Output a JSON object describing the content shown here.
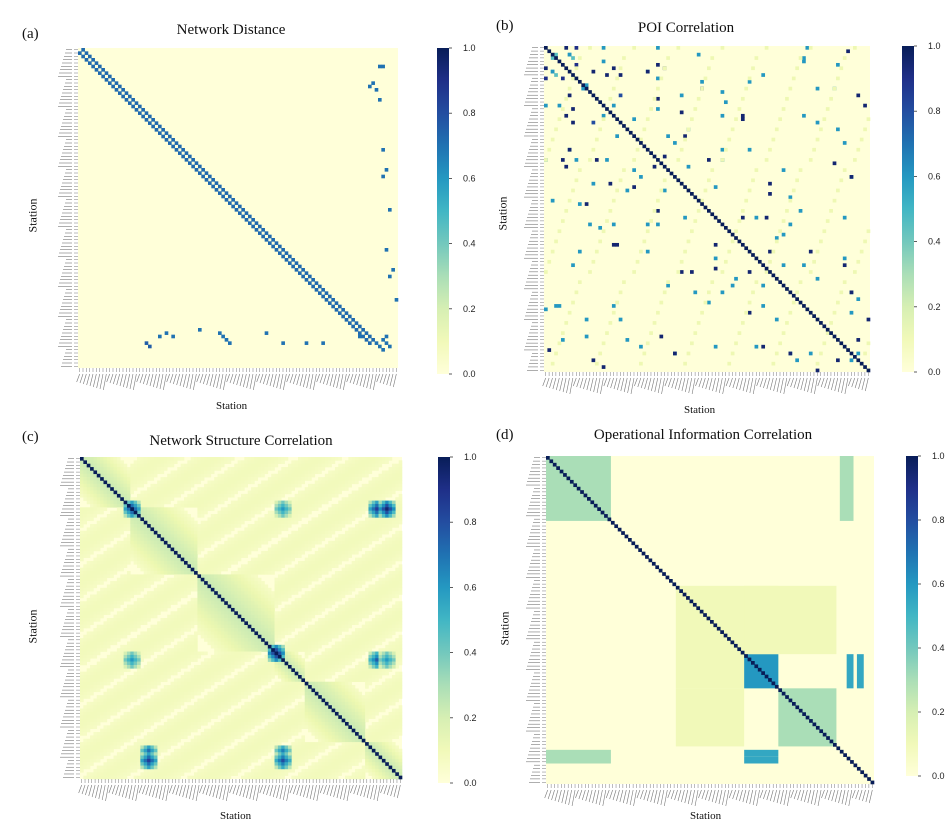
{
  "colors": {
    "cmap": [
      "#ffffd9",
      "#edf8b1",
      "#c7e9b4",
      "#7fcdbb",
      "#41b6c4",
      "#1d91c0",
      "#225ea8",
      "#253494",
      "#081d58"
    ],
    "background": "#ffffd9"
  },
  "panels": [
    {
      "letter": "(a)",
      "title": "Network Distance",
      "ylabel": "Station",
      "xlabel": "Station"
    },
    {
      "letter": "(b)",
      "title": "POI Correlation",
      "ylabel": "Station",
      "xlabel": "Station"
    },
    {
      "letter": "(c)",
      "title": "Network Structure Correlation",
      "ylabel": "Station",
      "xlabel": "Station"
    },
    {
      "letter": "(d)",
      "title": "Operational Information Correlation",
      "ylabel": "Station",
      "xlabel": "Station"
    }
  ],
  "chart_data": [
    {
      "type": "heatmap",
      "title": "Network Distance",
      "xlabel": "Station",
      "ylabel": "Station",
      "n": 96,
      "vmin": 0.0,
      "vmax": 1.0,
      "colorbar_ticks": [
        "0.0",
        "0.2",
        "0.4",
        "0.6",
        "0.8",
        "1.0"
      ],
      "pattern": "adjacency",
      "cells": [
        [
          88,
          20,
          0.75
        ],
        [
          89,
          21,
          0.75
        ],
        [
          86,
          24,
          0.7
        ],
        [
          85,
          26,
          0.7
        ],
        [
          86,
          28,
          0.7
        ],
        [
          84,
          36,
          0.7
        ],
        [
          85,
          42,
          0.7
        ],
        [
          86,
          43,
          0.7
        ],
        [
          87,
          44,
          0.7
        ],
        [
          88,
          45,
          0.7
        ],
        [
          85,
          56,
          0.7
        ],
        [
          88,
          61,
          0.7
        ],
        [
          88,
          68,
          0.7
        ],
        [
          88,
          73,
          0.7
        ],
        [
          86,
          84,
          0.7
        ],
        [
          88,
          89,
          0.7
        ],
        [
          89,
          90,
          0.7
        ],
        [
          90,
          91,
          0.7
        ],
        [
          86,
          92,
          0.7
        ],
        [
          87,
          91,
          0.7
        ],
        [
          88,
          92,
          0.7
        ],
        [
          89,
          93,
          0.7
        ],
        [
          10,
          88,
          0.7
        ],
        [
          11,
          87,
          0.7
        ],
        [
          12,
          89,
          0.7
        ],
        [
          15,
          90,
          0.7
        ],
        [
          30,
          91,
          0.7
        ],
        [
          36,
          92,
          0.7
        ],
        [
          48,
          93,
          0.7
        ],
        [
          66,
          94,
          0.7
        ],
        [
          75,
          95,
          0.7
        ],
        [
          5,
          90,
          0.7
        ],
        [
          5,
          91,
          0.7
        ],
        [
          38,
          91,
          0.7
        ],
        [
          60,
          92,
          0.7
        ],
        [
          68,
          93,
          0.7
        ]
      ]
    },
    {
      "type": "heatmap",
      "title": "POI Correlation",
      "xlabel": "Station",
      "ylabel": "Station",
      "n": 96,
      "vmin": 0.0,
      "vmax": 1.0,
      "colorbar_ticks": [
        "0.0",
        "0.2",
        "0.4",
        "0.6",
        "0.8",
        "1.0"
      ],
      "pattern": "sparse",
      "cells": [
        [
          0,
          6,
          0.95
        ],
        [
          0,
          9,
          0.9
        ],
        [
          0,
          17,
          0.6
        ],
        [
          0,
          33,
          0.6
        ],
        [
          2,
          7,
          0.6
        ],
        [
          3,
          2,
          0.45
        ],
        [
          4,
          17,
          0.6
        ],
        [
          5,
          9,
          0.9
        ],
        [
          5,
          33,
          0.95
        ],
        [
          6,
          20,
          0.95
        ],
        [
          6,
          35,
          0.95
        ],
        [
          7,
          30,
          0.6
        ],
        [
          7,
          2,
          0.6
        ],
        [
          8,
          3,
          0.45
        ],
        [
          8,
          18,
          0.95
        ],
        [
          8,
          22,
          0.95
        ],
        [
          9,
          33,
          0.6
        ],
        [
          10,
          46,
          0.6
        ],
        [
          12,
          11,
          0.6
        ],
        [
          13,
          52,
          0.6
        ],
        [
          14,
          7,
          0.95
        ],
        [
          14,
          22,
          0.8
        ],
        [
          15,
          33,
          0.95
        ],
        [
          16,
          53,
          0.6
        ],
        [
          18,
          33,
          0.6
        ],
        [
          20,
          52,
          0.6
        ],
        [
          20,
          17,
          0.6
        ],
        [
          24,
          42,
          0.6
        ],
        [
          26,
          21,
          0.6
        ],
        [
          26,
          36,
          0.6
        ],
        [
          28,
          38,
          0.6
        ],
        [
          30,
          7,
          0.95
        ],
        [
          30,
          52,
          0.6
        ],
        [
          32,
          35,
          0.95
        ],
        [
          35,
          42,
          0.6
        ],
        [
          36,
          70,
          0.6
        ],
        [
          40,
          14,
          0.6
        ],
        [
          40,
          19,
          0.95
        ],
        [
          41,
          26,
          0.95
        ],
        [
          45,
          2,
          0.6
        ],
        [
          46,
          12,
          0.95
        ],
        [
          48,
          33,
          0.95
        ],
        [
          50,
          41,
          0.6
        ],
        [
          52,
          33,
          0.6
        ],
        [
          58,
          20,
          0.95
        ],
        [
          58,
          50,
          0.95
        ],
        [
          58,
          21,
          0.95
        ],
        [
          62,
          50,
          0.6
        ],
        [
          64,
          88,
          0.95
        ],
        [
          65,
          50,
          0.95
        ],
        [
          66,
          40,
          0.95
        ],
        [
          66,
          43,
          0.95
        ],
        [
          70,
          55,
          0.6
        ],
        [
          72,
          90,
          0.6
        ],
        [
          75,
          48,
          0.6
        ],
        [
          80,
          95,
          0.95
        ],
        [
          85,
          12,
          0.6
        ],
        [
          86,
          92,
          0.95
        ],
        [
          90,
          38,
          0.6
        ],
        [
          90,
          92,
          0.6
        ],
        [
          0,
          77,
          0.6
        ],
        [
          1,
          89,
          0.95
        ],
        [
          3,
          76,
          0.6
        ],
        [
          4,
          76,
          0.6
        ],
        [
          5,
          86,
          0.6
        ],
        [
          8,
          64,
          0.6
        ],
        [
          10,
          60,
          0.6
        ],
        [
          12,
          80,
          0.6
        ],
        [
          14,
          92,
          0.95
        ],
        [
          17,
          94,
          0.95
        ],
        [
          20,
          76,
          0.6
        ],
        [
          22,
          80,
          0.6
        ],
        [
          24,
          86,
          0.6
        ],
        [
          28,
          88,
          0.6
        ],
        [
          30,
          60,
          0.6
        ],
        [
          34,
          85,
          0.95
        ],
        [
          38,
          90,
          0.95
        ],
        [
          44,
          72,
          0.6
        ],
        [
          50,
          88,
          0.6
        ],
        [
          52,
          72,
          0.6
        ],
        [
          56,
          68,
          0.6
        ],
        [
          60,
          78,
          0.95
        ],
        [
          62,
          88,
          0.6
        ],
        [
          66,
          60,
          0.95
        ],
        [
          68,
          80,
          0.6
        ],
        [
          70,
          64,
          0.6
        ],
        [
          72,
          90,
          0.95
        ],
        [
          74,
          92,
          0.6
        ],
        [
          76,
          64,
          0.6
        ],
        [
          78,
          90,
          0.6
        ]
      ]
    },
    {
      "type": "heatmap",
      "title": "Network Structure Correlation",
      "xlabel": "Station",
      "ylabel": "Station",
      "n": 96,
      "vmin": 0.0,
      "vmax": 1.0,
      "colorbar_ticks": [
        "0.0",
        "0.2",
        "0.4",
        "0.6",
        "0.8",
        "1.0"
      ],
      "pattern": "structure",
      "blocks": [
        [
          0,
          15
        ],
        [
          15,
          35
        ],
        [
          35,
          58
        ],
        [
          58,
          67
        ],
        [
          67,
          85
        ],
        [
          85,
          96
        ]
      ],
      "hot_spots": [
        [
          15,
          15,
          0.85
        ],
        [
          58,
          58,
          0.95
        ],
        [
          60,
          15,
          0.6
        ],
        [
          15,
          60,
          0.6
        ],
        [
          88,
          20,
          0.85
        ],
        [
          90,
          20,
          0.85
        ],
        [
          88,
          60,
          0.8
        ],
        [
          90,
          60,
          0.8
        ],
        [
          15,
          88,
          0.85
        ],
        [
          15,
          91,
          0.95
        ],
        [
          60,
          88,
          0.75
        ],
        [
          60,
          91,
          0.6
        ]
      ]
    },
    {
      "type": "heatmap",
      "title": "Operational Information Correlation",
      "xlabel": "Station",
      "ylabel": "Station",
      "n": 96,
      "vmin": 0.0,
      "vmax": 1.0,
      "colorbar_ticks": [
        "0.0",
        "0.2",
        "0.4",
        "0.6",
        "0.8",
        "1.0"
      ],
      "pattern": "blocks",
      "blocks": [
        [
          0,
          19,
          0.3
        ],
        [
          38,
          68,
          0.1
        ],
        [
          58,
          68,
          0.6
        ],
        [
          68,
          85,
          0.3
        ]
      ],
      "cross_blocks": [
        [
          38,
          58,
          58,
          85,
          0.1
        ],
        [
          68,
          85,
          38,
          58,
          0.1
        ],
        [
          86,
          90,
          0,
          19,
          0.3
        ],
        [
          0,
          19,
          86,
          90,
          0.3
        ],
        [
          86,
          88,
          58,
          68,
          0.55
        ],
        [
          88,
          90,
          58,
          68,
          0.55
        ],
        [
          58,
          68,
          88,
          90,
          0.55
        ],
        [
          58,
          68,
          91,
          93,
          0.55
        ]
      ]
    }
  ]
}
